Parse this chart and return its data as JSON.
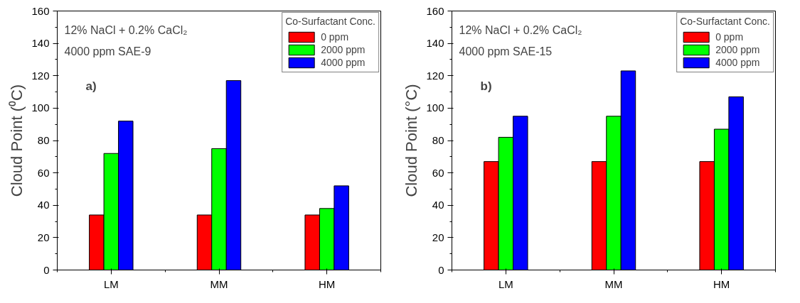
{
  "chart_data": [
    {
      "type": "bar",
      "categories": [
        "LM",
        "MM",
        "HM"
      ],
      "ylabel": "Cloud Point (⁰C)",
      "legend_title": "Co-Surfactant Conc.",
      "legend": "top right",
      "ylim": [
        0,
        160
      ],
      "yticks": [
        0,
        20,
        40,
        60,
        80,
        100,
        120,
        140,
        160
      ],
      "grid": false,
      "annotations": [
        "12% NaCl + 0.2% CaCl₂",
        "4000 ppm SAE-9",
        "a)"
      ],
      "series": [
        {
          "name": "0 ppm",
          "color": "#ff0000",
          "values": [
            34,
            34,
            34
          ]
        },
        {
          "name": "2000 ppm",
          "color": "#00ff00",
          "values": [
            72,
            75,
            38
          ]
        },
        {
          "name": "4000 ppm",
          "color": "#0000ff",
          "values": [
            92,
            117,
            52
          ]
        }
      ]
    },
    {
      "type": "bar",
      "categories": [
        "LM",
        "MM",
        "HM"
      ],
      "ylabel": "Cloud Point (°C)",
      "legend_title": "Co-Surfactant Conc.",
      "legend": "top right",
      "ylim": [
        0,
        160
      ],
      "yticks": [
        0,
        20,
        40,
        60,
        80,
        100,
        120,
        140,
        160
      ],
      "grid": false,
      "annotations": [
        "12% NaCl + 0.2% CaCl₂",
        "4000 ppm SAE-15",
        "b)"
      ],
      "series": [
        {
          "name": "0 ppm",
          "color": "#ff0000",
          "values": [
            67,
            67,
            67
          ]
        },
        {
          "name": "2000 ppm",
          "color": "#00ff00",
          "values": [
            82,
            95,
            87
          ]
        },
        {
          "name": "4000 ppm",
          "color": "#0000ff",
          "values": [
            95,
            123,
            107
          ]
        }
      ]
    }
  ]
}
